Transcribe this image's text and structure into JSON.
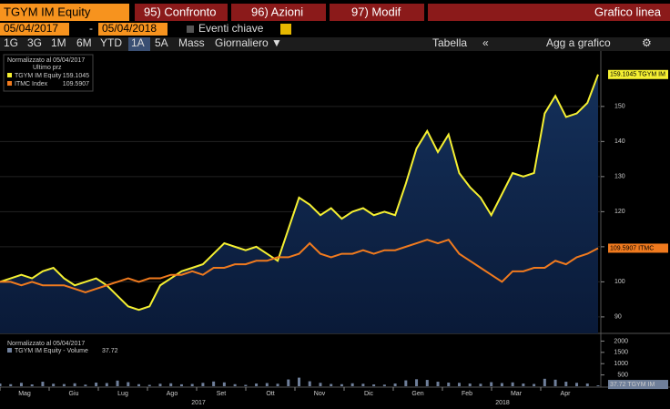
{
  "toolbar": {
    "ticker": "TGYM IM Equity",
    "tabs": [
      "95) Confronto",
      "96) Azioni",
      "97) Modif"
    ],
    "view": "Grafico linea",
    "start_date": "05/04/2017",
    "separator": "-",
    "end_date": "05/04/2018",
    "events": "Eventi chiave",
    "periods": [
      "1G",
      "3G",
      "1M",
      "6M",
      "YTD",
      "1A",
      "5A",
      "Mass"
    ],
    "frequency": "Giornaliero ▼",
    "table": "Tabella",
    "collapse": "«",
    "add": "Agg a grafico"
  },
  "chart_data": [
    {
      "type": "line",
      "legend_title": "Normalizzato al 05/04/2017",
      "legend_subtitle": "Ultimo prz",
      "x_labels": [
        "Mag",
        "Giu",
        "Lug",
        "Ago",
        "Set",
        "Ott",
        "Nov",
        "Dic",
        "Gen",
        "Feb",
        "Mar",
        "Apr"
      ],
      "years": [
        "2017",
        "2018"
      ],
      "ylim": [
        85.3,
        165.8
      ],
      "yticks": [
        90,
        100,
        110,
        120,
        130,
        140,
        150
      ],
      "series": [
        {
          "name": "TGYM IM Equity",
          "last": "159.1045",
          "end_label": "159.1045 TGYM IM",
          "color": "#f5f032",
          "values": [
            100,
            101,
            102,
            101,
            103,
            104,
            101,
            99,
            100,
            101,
            99,
            96,
            93,
            92,
            93,
            99,
            101,
            103,
            104,
            105,
            108,
            111,
            110,
            109,
            110,
            108,
            106,
            115,
            124,
            122,
            119,
            121,
            118,
            120,
            121,
            119,
            120,
            119,
            128,
            138,
            143,
            137,
            142,
            131,
            127,
            124,
            119,
            125,
            131,
            130,
            131,
            148,
            153,
            147,
            148,
            151,
            159.1045
          ]
        },
        {
          "name": "ITMC Index",
          "last": "109.5907",
          "end_label": "109.5907 ITMC",
          "color": "#f07a1e",
          "values": [
            100,
            100,
            99,
            100,
            99,
            99,
            99,
            98,
            97,
            98,
            99,
            100,
            101,
            100,
            101,
            101,
            102,
            102,
            103,
            102,
            104,
            104,
            105,
            105,
            106,
            106,
            107,
            107,
            108,
            111,
            108,
            107,
            108,
            108,
            109,
            108,
            109,
            109,
            110,
            111,
            112,
            111,
            112,
            108,
            106,
            104,
            102,
            100,
            103,
            103,
            104,
            104,
            106,
            105,
            107,
            108,
            109.5907
          ]
        }
      ]
    },
    {
      "type": "bar",
      "legend_title": "Normalizzato al 05/04/2017",
      "ylim": [
        0,
        2300
      ],
      "yticks": [
        500,
        1000,
        1500,
        2000
      ],
      "series": [
        {
          "name": "TGYM IM Equity - Volume",
          "last": "37.72",
          "end_label": "37.72 TGYM IM",
          "color": "#6f7f9a",
          "values": [
            120,
            90,
            150,
            80,
            200,
            110,
            95,
            130,
            70,
            160,
            140,
            250,
            180,
            90,
            60,
            110,
            130,
            85,
            100,
            150,
            210,
            170,
            90,
            60,
            120,
            140,
            110,
            300,
            380,
            220,
            150,
            100,
            90,
            130,
            110,
            80,
            70,
            120,
            260,
            310,
            280,
            200,
            160,
            150,
            120,
            110,
            180,
            140,
            170,
            120,
            100,
            330,
            290,
            200,
            150,
            120,
            37.72
          ]
        }
      ]
    }
  ]
}
